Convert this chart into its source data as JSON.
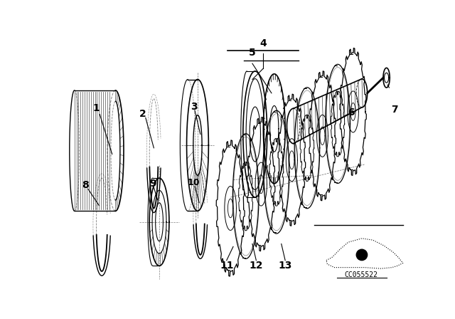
{
  "background_color": "#ffffff",
  "line_color": "#000000",
  "image_code": "CC055522",
  "fig_width": 6.4,
  "fig_height": 4.48,
  "dpi": 100
}
